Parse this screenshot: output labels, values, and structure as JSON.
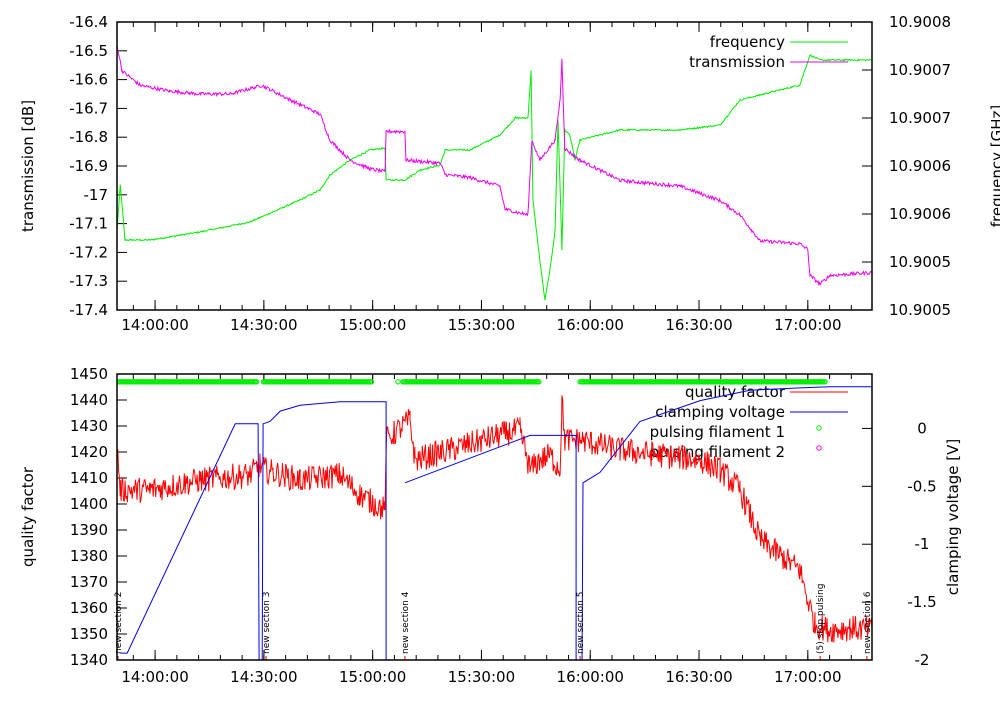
{
  "chart_data": [
    {
      "type": "line",
      "x_unit": "minutes after 13:00:00",
      "xlim": [
        49.5,
        257.7
      ],
      "x_ticks": [
        60,
        90,
        120,
        150,
        180,
        210,
        240
      ],
      "x_tick_labels": [
        "14:00:00",
        "14:30:00",
        "15:00:00",
        "15:30:00",
        "16:00:00",
        "16:30:00",
        "17:00:00"
      ],
      "ylabel": "transmission [dB]",
      "ylim": [
        -17.4,
        -16.4
      ],
      "y_ticks": [
        -17.4,
        -17.3,
        -17.2,
        -17.1,
        -17,
        -16.9,
        -16.8,
        -16.7,
        -16.6,
        -16.5,
        -16.4
      ],
      "y_tick_labels": [
        "-17.4",
        "-17.3",
        "-17.2",
        "-17.1",
        "-17",
        "-16.9",
        "-16.8",
        "-16.7",
        "-16.6",
        "-16.5",
        "-16.4"
      ],
      "y2label": "frequency [GHz]",
      "y2lim": [
        10.9005,
        10.9008
      ],
      "y2_ticks": [
        10.9005,
        10.90055,
        10.9006,
        10.90065,
        10.9007,
        10.90075,
        10.9008
      ],
      "y2_tick_labels": [
        "10.9005",
        "10.9005",
        "10.9006",
        "10.9006",
        "10.9007",
        "10.9007",
        "10.9008"
      ],
      "legend_position": "top-right",
      "series": [
        {
          "name": "frequency",
          "axis": "y2",
          "color": "#00ee00",
          "noise": 8e-07,
          "points": [
            [
              49.5,
              10.9005833
            ],
            [
              50.4,
              10.9006302
            ],
            [
              51.7,
              10.9005729
            ],
            [
              58.6,
              10.9005729
            ],
            [
              72.4,
              10.9005813
            ],
            [
              86.2,
              10.9005917
            ],
            [
              100.0,
              10.9006146
            ],
            [
              105.5,
              10.900625
            ],
            [
              108.2,
              10.9006406
            ],
            [
              113.8,
              10.9006563
            ],
            [
              119.3,
              10.9006667
            ],
            [
              123.4,
              10.9006688
            ],
            [
              123.7,
              10.9006354
            ],
            [
              128.9,
              10.9006354
            ],
            [
              133.1,
              10.9006458
            ],
            [
              138.6,
              10.900651
            ],
            [
              140.0,
              10.9006667
            ],
            [
              146.8,
              10.9006667
            ],
            [
              155.1,
              10.9006823
            ],
            [
              159.3,
              10.9007
            ],
            [
              162.8,
              10.9007
            ],
            [
              163.7,
              10.90075
            ],
            [
              164.2,
              10.9006146
            ],
            [
              166.1,
              10.9005521
            ],
            [
              167.5,
              10.9005104
            ],
            [
              168.9,
              10.9005417
            ],
            [
              170.3,
              10.9005833
            ],
            [
              171.1,
              10.9006979
            ],
            [
              172.2,
              10.9005625
            ],
            [
              173.0,
              10.9006875
            ],
            [
              174.4,
              10.9006823
            ],
            [
              175.8,
              10.9006563
            ],
            [
              177.2,
              10.9006771
            ],
            [
              188.2,
              10.9006875
            ],
            [
              204.7,
              10.9006875
            ],
            [
              215.8,
              10.9006927
            ],
            [
              221.3,
              10.9007188
            ],
            [
              226.8,
              10.900724
            ],
            [
              237.8,
              10.9007344
            ],
            [
              240.6,
              10.9007656
            ],
            [
              243.4,
              10.9007604
            ],
            [
              257.7,
              10.9007604
            ]
          ]
        },
        {
          "name": "transmission",
          "axis": "y",
          "color": "#ee00ee",
          "noise": 0.006,
          "points": [
            [
              49.5,
              -16.48
            ],
            [
              50.9,
              -16.57
            ],
            [
              55.9,
              -16.62
            ],
            [
              64.1,
              -16.64
            ],
            [
              72.4,
              -16.65
            ],
            [
              80.7,
              -16.65
            ],
            [
              89.5,
              -16.62
            ],
            [
              97.2,
              -16.67
            ],
            [
              105.5,
              -16.72
            ],
            [
              108.2,
              -16.81
            ],
            [
              113.8,
              -16.88
            ],
            [
              119.3,
              -16.91
            ],
            [
              123.4,
              -16.92
            ],
            [
              123.7,
              -16.78
            ],
            [
              128.9,
              -16.78
            ],
            [
              129.2,
              -16.88
            ],
            [
              138.6,
              -16.89
            ],
            [
              140.0,
              -16.93
            ],
            [
              146.8,
              -16.94
            ],
            [
              155.1,
              -16.97
            ],
            [
              156.5,
              -17.05
            ],
            [
              162.8,
              -17.07
            ],
            [
              163.9,
              -16.81
            ],
            [
              166.1,
              -16.88
            ],
            [
              170.3,
              -16.81
            ],
            [
              171.7,
              -16.67
            ],
            [
              172.2,
              -16.53
            ],
            [
              173.0,
              -16.84
            ],
            [
              177.2,
              -16.88
            ],
            [
              188.2,
              -16.95
            ],
            [
              204.7,
              -16.97
            ],
            [
              215.8,
              -17.02
            ],
            [
              221.3,
              -17.07
            ],
            [
              226.8,
              -17.16
            ],
            [
              237.8,
              -17.17
            ],
            [
              240.0,
              -17.19
            ],
            [
              240.6,
              -17.28
            ],
            [
              243.4,
              -17.31
            ],
            [
              246.1,
              -17.28
            ],
            [
              257.7,
              -17.27
            ]
          ]
        }
      ]
    },
    {
      "type": "line",
      "x_unit": "minutes after 13:00:00",
      "xlim": [
        49.5,
        257.7
      ],
      "x_ticks": [
        60,
        90,
        120,
        150,
        180,
        210,
        240
      ],
      "x_tick_labels": [
        "14:00:00",
        "14:30:00",
        "15:00:00",
        "15:30:00",
        "16:00:00",
        "16:30:00",
        "17:00:00"
      ],
      "ylabel": "quality factor",
      "ylim": [
        1340,
        1450
      ],
      "y_ticks": [
        1340,
        1350,
        1360,
        1370,
        1380,
        1390,
        1400,
        1410,
        1420,
        1430,
        1440,
        1450
      ],
      "y_tick_labels": [
        "1340",
        "1350",
        "1360",
        "1370",
        "1380",
        "1390",
        "1400",
        "1410",
        "1420",
        "1430",
        "1440",
        "1450"
      ],
      "y2label": "clamping voltage [V]",
      "y2lim": [
        -2,
        0.47
      ],
      "y2_ticks": [
        -2,
        -1.5,
        -1,
        -0.5,
        0
      ],
      "y2_tick_labels": [
        "-2",
        "-1.5",
        "-1",
        "-0.5",
        "0"
      ],
      "legend_position": "top-right",
      "series": [
        {
          "name": "quality factor",
          "axis": "y",
          "color": "#ff0000",
          "noise": 5,
          "points": [
            [
              49.5,
              1422.7
            ],
            [
              50.4,
              1405.4
            ],
            [
              58.6,
              1405.4
            ],
            [
              72.4,
              1409.2
            ],
            [
              86.2,
              1411.2
            ],
            [
              88.9,
              1415
            ],
            [
              90.3,
              1413.1
            ],
            [
              100.0,
              1409.2
            ],
            [
              111.0,
              1411.2
            ],
            [
              116.5,
              1403.5
            ],
            [
              123.4,
              1397.7
            ],
            [
              123.7,
              1424.6
            ],
            [
              130.3,
              1432.3
            ],
            [
              131.7,
              1416.9
            ],
            [
              141.3,
              1420.8
            ],
            [
              155.1,
              1426.5
            ],
            [
              160.6,
              1428.5
            ],
            [
              163.4,
              1413.1
            ],
            [
              166.1,
              1416.9
            ],
            [
              168.9,
              1418.8
            ],
            [
              171.7,
              1413.1
            ],
            [
              172.2,
              1440
            ],
            [
              173.0,
              1424.6
            ],
            [
              177.2,
              1424.6
            ],
            [
              188.2,
              1420.8
            ],
            [
              210.3,
              1416.9
            ],
            [
              215.8,
              1413.1
            ],
            [
              221.3,
              1405.4
            ],
            [
              226.8,
              1386.2
            ],
            [
              232.3,
              1380.4
            ],
            [
              237.8,
              1374.6
            ],
            [
              240.0,
              1363.1
            ],
            [
              242.0,
              1353.5
            ],
            [
              246.1,
              1351.5
            ],
            [
              251.6,
              1352.3
            ],
            [
              257.7,
              1351.5
            ]
          ]
        },
        {
          "name": "clamping voltage",
          "axis": "y2",
          "color": "#0000ee",
          "noise": 0,
          "points": [
            [
              50.4,
              -1.94
            ],
            [
              52.3,
              -1.94
            ],
            [
              82.1,
              0.04
            ],
            [
              88.4,
              0.04
            ],
            [
              88.7,
              -2.2
            ],
            [
              89.5,
              -2.2
            ],
            [
              89.8,
              0.04
            ],
            [
              91.7,
              0.06
            ],
            [
              94.5,
              0.15
            ],
            [
              100.0,
              0.2
            ],
            [
              111.0,
              0.23
            ],
            [
              123.7,
              0.23
            ],
            [
              123.7,
              -2.2
            ],
            null,
            [
              128.9,
              -0.47
            ],
            [
              163.4,
              -0.06
            ],
            [
              176.1,
              -0.06
            ],
            [
              176.1,
              -2.2
            ],
            [
              177.7,
              -2.2
            ],
            [
              178.0,
              -0.47
            ],
            [
              182.7,
              -0.38
            ],
            [
              193.7,
              0.06
            ],
            [
              210.3,
              0.24
            ],
            [
              224.0,
              0.33
            ],
            [
              237.8,
              0.35
            ],
            [
              246.1,
              0.36
            ],
            [
              257.7,
              0.36
            ]
          ]
        },
        {
          "name": "pulsing filament 1",
          "axis": "y",
          "color": "#00ee00",
          "marker": "circle",
          "y_level": 1447,
          "intervals": [
            [
              49.5,
              88.2
            ],
            [
              89.9,
              119.8
            ],
            [
              128.4,
              166.1
            ],
            [
              177.2,
              244.8
            ]
          ],
          "single_points": [
            127.0
          ]
        },
        {
          "name": "pulsing filament 2",
          "axis": "y",
          "color": "#ee00ee",
          "marker": "circle",
          "intervals": []
        }
      ],
      "annotations": [
        {
          "x": 49.8,
          "text": "new section 2"
        },
        {
          "x": 90.6,
          "text": "new section 3"
        },
        {
          "x": 128.9,
          "text": "new section 4"
        },
        {
          "x": 177.2,
          "text": "new section 5"
        },
        {
          "x": 243.4,
          "text": "(5) stop pulsing"
        },
        {
          "x": 256.3,
          "text": "new section 6"
        }
      ]
    }
  ]
}
